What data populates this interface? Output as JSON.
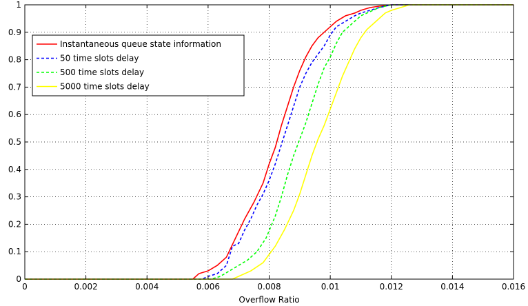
{
  "chart_data": {
    "type": "line",
    "title": "",
    "xlabel": "Overflow Ratio",
    "ylabel": "",
    "xlim": [
      0,
      0.016
    ],
    "ylim": [
      0,
      1
    ],
    "grid": true,
    "legend_position": "top-left",
    "x_ticks": [
      "0",
      "0.002",
      "0.004",
      "0.006",
      "0.008",
      "0.01",
      "0.012",
      "0.014",
      "0.016"
    ],
    "x_tick_values": [
      0,
      0.002,
      0.004,
      0.006,
      0.008,
      0.01,
      0.012,
      0.014,
      0.016
    ],
    "y_ticks": [
      "0",
      "0.1",
      "0.2",
      "0.3",
      "0.4",
      "0.5",
      "0.6",
      "0.7",
      "0.8",
      "0.9",
      "1"
    ],
    "y_tick_values": [
      0,
      0.1,
      0.2,
      0.3,
      0.4,
      0.5,
      0.6,
      0.7,
      0.8,
      0.9,
      1
    ],
    "series": [
      {
        "name": "Instantaneous queue state information",
        "color": "#ff0000",
        "dash": "solid",
        "x": [
          0,
          0.0055,
          0.0057,
          0.006,
          0.0063,
          0.0066,
          0.0069,
          0.0072,
          0.0075,
          0.0078,
          0.008,
          0.0082,
          0.0084,
          0.0086,
          0.0088,
          0.009,
          0.0092,
          0.0094,
          0.0096,
          0.0098,
          0.01,
          0.0102,
          0.0105,
          0.0108,
          0.011,
          0.0113,
          0.0116,
          0.012,
          0.0125,
          0.013,
          0.016
        ],
        "y": [
          0,
          0,
          0.02,
          0.03,
          0.05,
          0.08,
          0.15,
          0.22,
          0.28,
          0.35,
          0.42,
          0.48,
          0.56,
          0.63,
          0.7,
          0.76,
          0.81,
          0.85,
          0.88,
          0.9,
          0.92,
          0.94,
          0.96,
          0.97,
          0.98,
          0.99,
          0.995,
          1,
          1,
          1,
          1
        ]
      },
      {
        "name": "50 time slots delay",
        "color": "#0000ff",
        "dash": "dashed",
        "x": [
          0,
          0.0058,
          0.006,
          0.0063,
          0.0066,
          0.0068,
          0.007,
          0.0072,
          0.0074,
          0.0076,
          0.0078,
          0.008,
          0.0082,
          0.0084,
          0.0086,
          0.0088,
          0.009,
          0.0092,
          0.0094,
          0.0096,
          0.0098,
          0.01,
          0.0102,
          0.0105,
          0.0108,
          0.011,
          0.0113,
          0.0116,
          0.012,
          0.0125,
          0.016
        ],
        "y": [
          0,
          0,
          0.01,
          0.02,
          0.05,
          0.12,
          0.13,
          0.18,
          0.22,
          0.27,
          0.31,
          0.36,
          0.42,
          0.49,
          0.56,
          0.63,
          0.7,
          0.75,
          0.79,
          0.82,
          0.85,
          0.89,
          0.92,
          0.94,
          0.96,
          0.97,
          0.98,
          0.99,
          1,
          1,
          1
        ]
      },
      {
        "name": "500 time slots delay",
        "color": "#00ff00",
        "dash": "dashed",
        "x": [
          0,
          0.0061,
          0.0064,
          0.0067,
          0.007,
          0.0073,
          0.0076,
          0.0079,
          0.0082,
          0.0084,
          0.0086,
          0.0088,
          0.009,
          0.0092,
          0.0094,
          0.0096,
          0.0098,
          0.01,
          0.0102,
          0.0104,
          0.0106,
          0.0108,
          0.011,
          0.0113,
          0.0116,
          0.012,
          0.0125,
          0.016
        ],
        "y": [
          0,
          0,
          0.01,
          0.03,
          0.05,
          0.07,
          0.1,
          0.15,
          0.23,
          0.3,
          0.38,
          0.45,
          0.51,
          0.57,
          0.64,
          0.71,
          0.77,
          0.81,
          0.86,
          0.9,
          0.92,
          0.94,
          0.96,
          0.975,
          0.99,
          1,
          1,
          1
        ]
      },
      {
        "name": "5000 time slots delay",
        "color": "#ffff00",
        "dash": "solid",
        "x": [
          0,
          0.0068,
          0.007,
          0.0074,
          0.0078,
          0.0082,
          0.0085,
          0.0088,
          0.009,
          0.0092,
          0.0094,
          0.0096,
          0.0098,
          0.01,
          0.0102,
          0.0104,
          0.0106,
          0.0108,
          0.011,
          0.0112,
          0.0114,
          0.0116,
          0.0118,
          0.012,
          0.0123,
          0.0126,
          0.013,
          0.0135,
          0.016
        ],
        "y": [
          0,
          0,
          0.01,
          0.03,
          0.06,
          0.12,
          0.18,
          0.25,
          0.31,
          0.38,
          0.45,
          0.51,
          0.56,
          0.62,
          0.68,
          0.74,
          0.79,
          0.84,
          0.88,
          0.91,
          0.93,
          0.95,
          0.97,
          0.98,
          0.99,
          1,
          1,
          1,
          1
        ]
      }
    ]
  }
}
